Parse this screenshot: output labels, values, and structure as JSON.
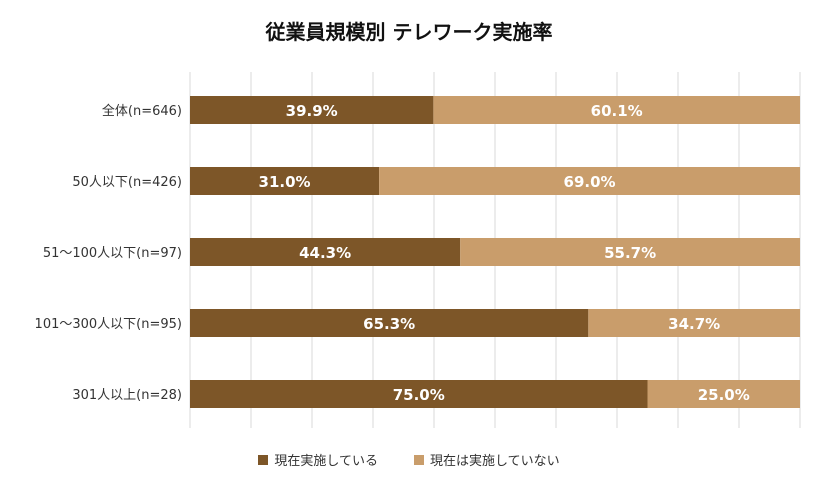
{
  "chart_data": {
    "type": "bar",
    "orientation": "horizontal",
    "stacked": true,
    "percent": true,
    "title": "従業員規模別 テレワーク実施率",
    "categories": [
      "全体(n=646)",
      "50人以下(n=426)",
      "51～100人以下(n=97)",
      "101～300人以下(n=95)",
      "301人以上(n=28)"
    ],
    "series": [
      {
        "name": "現在実施している",
        "color": "#7d5628",
        "values": [
          39.9,
          31.0,
          44.3,
          65.3,
          75.0
        ],
        "labels": [
          "39.9%",
          "31.0%",
          "44.3%",
          "65.3%",
          "75.0%"
        ]
      },
      {
        "name": "現在は実施していない",
        "color": "#c99d6b",
        "values": [
          60.1,
          69.0,
          55.7,
          34.7,
          25.0
        ],
        "labels": [
          "60.1%",
          "69.0%",
          "55.7%",
          "34.7%",
          "25.0%"
        ]
      }
    ],
    "xlim": [
      0,
      100
    ],
    "grid": true,
    "legend": "bottom"
  }
}
